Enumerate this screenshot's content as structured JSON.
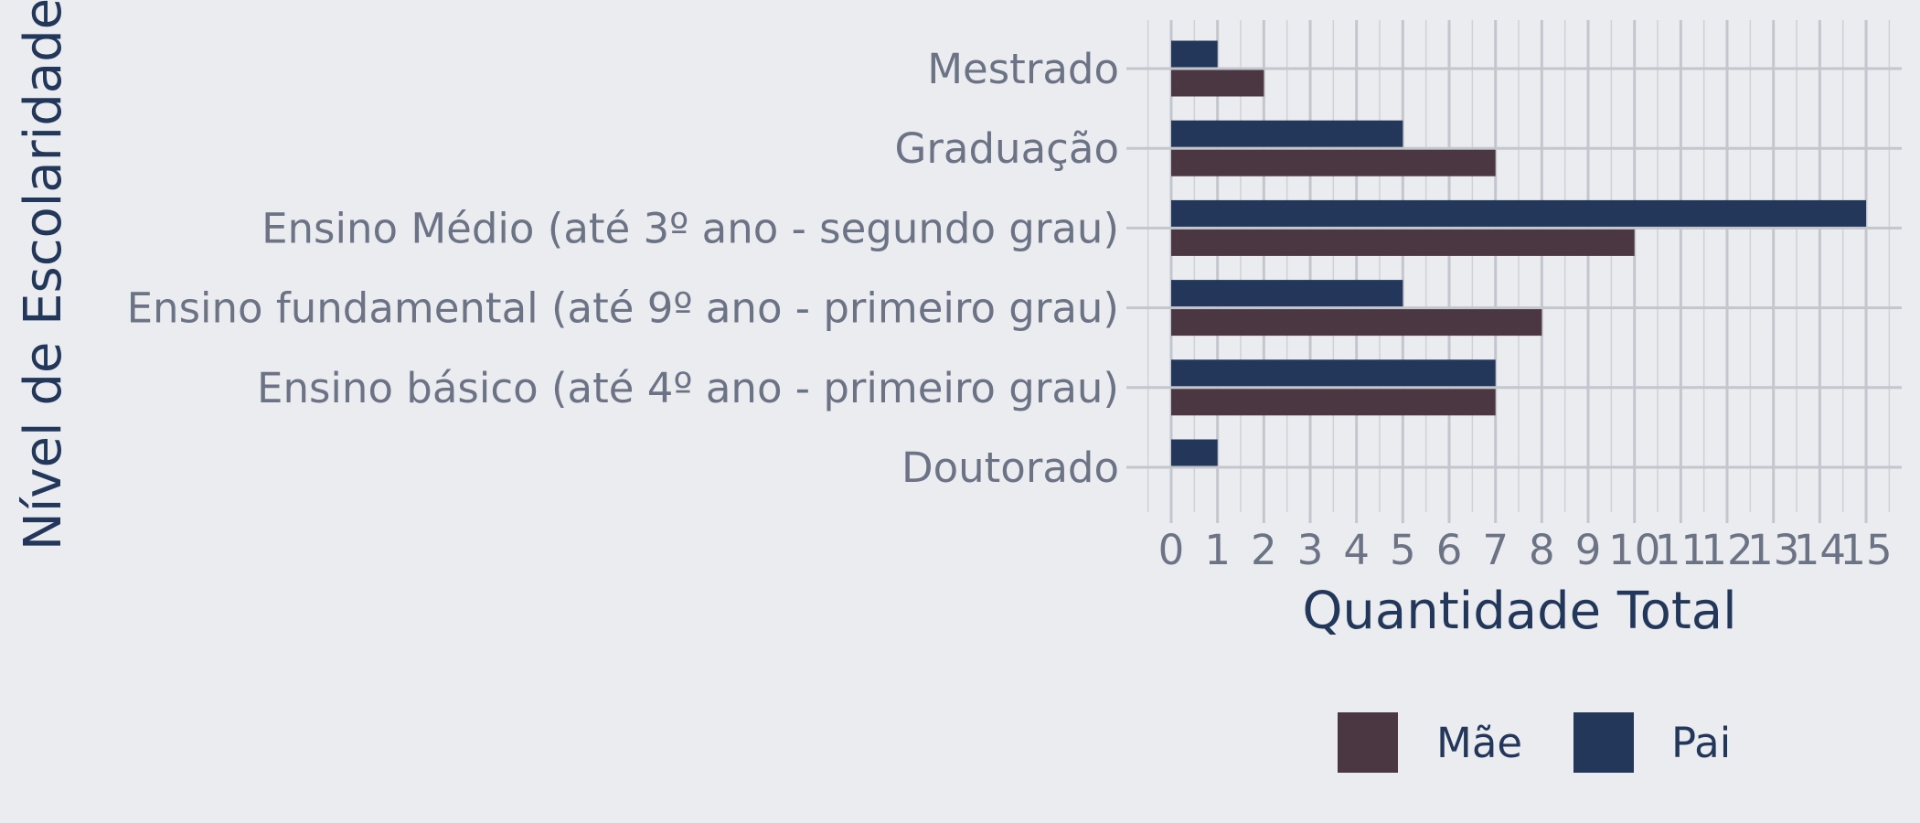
{
  "chart_data": {
    "type": "bar",
    "orientation": "horizontal",
    "xlabel": "Quantidade Total",
    "ylabel": "Nível de Escolaridade",
    "categories": [
      "Mestrado",
      "Graduação",
      "Ensino Médio (até 3º ano - segundo grau)",
      "Ensino fundamental (até 9º ano - primeiro grau)",
      "Ensino básico (até 4º ano - primeiro grau)",
      "Doutorado"
    ],
    "series": [
      {
        "name": "Pai",
        "color": "#22375a",
        "values": [
          1,
          5,
          15,
          5,
          7,
          1
        ]
      },
      {
        "name": "Mãe",
        "color": "#4a3742",
        "values": [
          2,
          7,
          10,
          8,
          7,
          0
        ]
      }
    ],
    "xlim": [
      0,
      15
    ],
    "xticks": [
      0,
      1,
      2,
      3,
      4,
      5,
      6,
      7,
      8,
      9,
      10,
      11,
      12,
      13,
      14,
      15
    ],
    "xtick_labels": [
      "0",
      "1",
      "2",
      "3",
      "4",
      "5",
      "6",
      "7",
      "8",
      "9",
      "10",
      "11",
      "12",
      "13",
      "14",
      "15"
    ],
    "legend": {
      "position": "bottom",
      "entries": [
        {
          "label": "Mãe",
          "color": "#4a3742"
        },
        {
          "label": "Pai",
          "color": "#22375a"
        }
      ]
    },
    "grid": true
  }
}
